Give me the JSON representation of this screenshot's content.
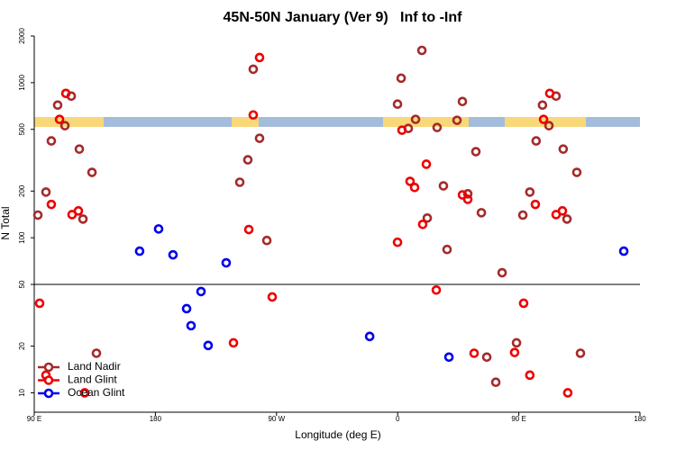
{
  "chart_data": {
    "type": "scatter",
    "title": "45N-50N January (Ver 9)   Inf to -Inf",
    "x_label": "Longitude (deg E)",
    "y_label": "N Total",
    "xlim": [
      90,
      540
    ],
    "ylim": [
      7.5,
      2000
    ],
    "log_y": true,
    "hline": 50,
    "legend": "bottom-left",
    "xticks": [
      {
        "value": 90,
        "label": "90 E"
      },
      {
        "value": 180,
        "label": "180"
      },
      {
        "value": 270,
        "label": "90 W"
      },
      {
        "value": 360,
        "label": "0"
      },
      {
        "value": 450,
        "label": "90 E"
      },
      {
        "value": 540,
        "label": "180"
      }
    ],
    "yticks": [
      10,
      20,
      50,
      100,
      200,
      500,
      1000,
      2000
    ],
    "series": [
      {
        "name": "Land Nadir",
        "color": "#a52a2a",
        "x": [
          92.7,
          98.7,
          102.7,
          107.4,
          112.8,
          117.5,
          123.5,
          126.2,
          132.9,
          136.2,
          242.7,
          248.7,
          252.7,
          257.4,
          262.8,
          359.9,
          362.6,
          367.9,
          373.3,
          378,
          382,
          389.3,
          394,
          396.7,
          404.1,
          408.1,
          412.1,
          418.1,
          422.2,
          426.2,
          432.9,
          437.6,
          448.3,
          453,
          458.2,
          462.9,
          467.6,
          472.4,
          477.7,
          483,
          485.8,
          493.1,
          495.8
        ],
        "values": [
          140,
          197,
          421,
          717,
          528,
          819,
          373,
          132,
          264,
          18,
          228,
          318,
          1221,
          438,
          96,
          727,
          1069,
          507,
          580,
          1615,
          134,
          514,
          216,
          84,
          572,
          756,
          192,
          359,
          145,
          17,
          11.7,
          59.5,
          21,
          140,
          197,
          421,
          717,
          528,
          819,
          373,
          132,
          264,
          18
        ]
      },
      {
        "name": "Land Glint",
        "color": "#ee0000",
        "x": [
          94,
          98.7,
          102.7,
          108.8,
          113.5,
          118.1,
          122.8,
          127.5,
          238,
          249.4,
          252.7,
          257.4,
          266.8,
          359.9,
          363.2,
          369.2,
          372.6,
          378.6,
          381.3,
          388.7,
          408.1,
          412.1,
          416.8,
          446.9,
          453.6,
          458.2,
          462.3,
          468.4,
          473,
          477.7,
          482.4,
          486.4
        ],
        "values": [
          37.8,
          13,
          164,
          580,
          853,
          141,
          149,
          10,
          21,
          113,
          619,
          1452,
          41.5,
          93.5,
          494,
          231,
          211,
          122,
          298,
          46,
          189,
          177,
          18,
          18.2,
          37.8,
          13,
          164,
          580,
          853,
          141,
          149,
          10
        ]
      },
      {
        "name": "Ocean Glint",
        "color": "#0000ee",
        "x": [
          168.3,
          182.4,
          193.1,
          203.2,
          206.5,
          213.9,
          219.2,
          232.6,
          339.2,
          398.1,
          528
        ],
        "values": [
          81.9,
          114,
          77.6,
          34.9,
          27.1,
          45,
          20.2,
          68.9,
          23.1,
          17,
          81.9
        ]
      }
    ]
  }
}
